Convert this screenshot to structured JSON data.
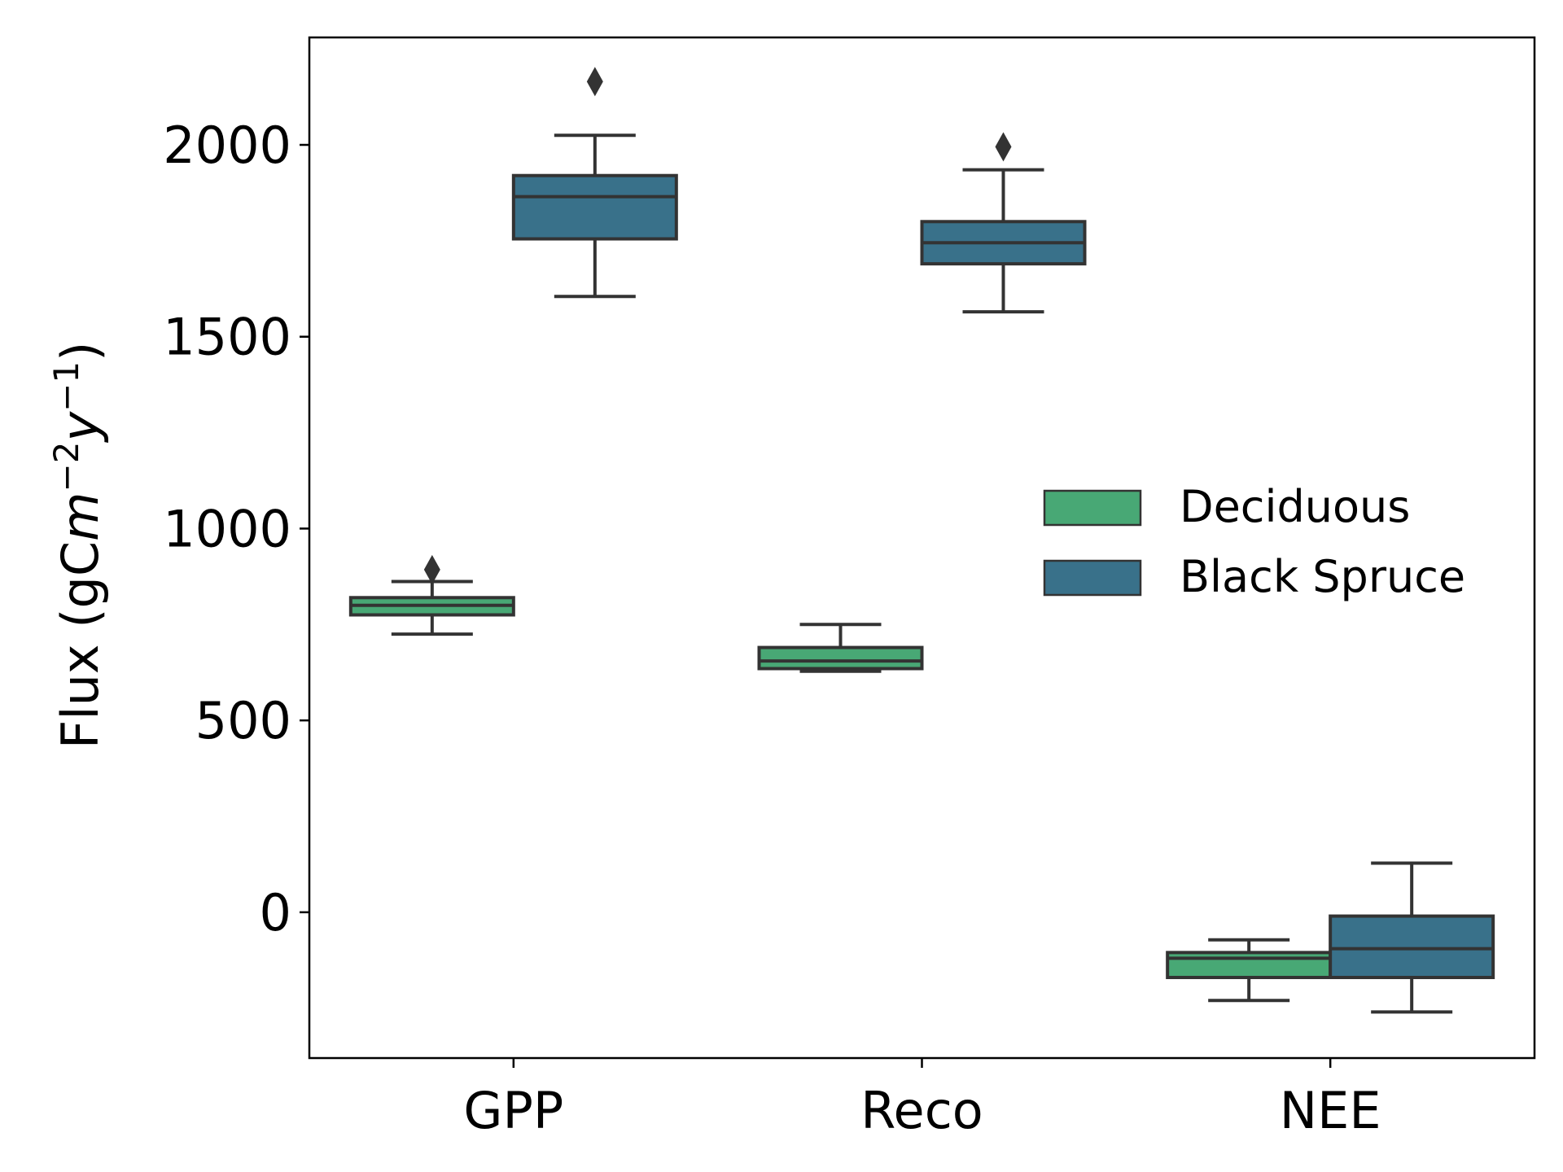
{
  "chart_data": {
    "type": "box",
    "title": "",
    "xlabel": "",
    "ylabel": {
      "text": "Flux (gCm⁻²y⁻¹)",
      "parts": [
        "Flux (gC",
        "m",
        "−2",
        "y",
        "−1",
        ")"
      ]
    },
    "ylim": [
      -380,
      2280
    ],
    "yticks": [
      0,
      500,
      1000,
      1500,
      2000
    ],
    "categories": [
      "GPP",
      "Reco",
      "NEE"
    ],
    "grid": false,
    "legend_position": "center-right",
    "series": [
      {
        "name": "Deciduous",
        "color": "#48a875",
        "boxes": [
          {
            "category": "GPP",
            "whisker_low": 725,
            "q1": 775,
            "median": 800,
            "q3": 820,
            "whisker_high": 862,
            "outliers": [
              893
            ]
          },
          {
            "category": "Reco",
            "whisker_low": 628,
            "q1": 635,
            "median": 655,
            "q3": 690,
            "whisker_high": 750,
            "outliers": []
          },
          {
            "category": "NEE",
            "whisker_low": -230,
            "q1": -170,
            "median": -120,
            "q3": -105,
            "whisker_high": -72,
            "outliers": []
          }
        ]
      },
      {
        "name": "Black Spruce",
        "color": "#39718a",
        "boxes": [
          {
            "category": "GPP",
            "whisker_low": 1605,
            "q1": 1755,
            "median": 1865,
            "q3": 1920,
            "whisker_high": 2025,
            "outliers": [
              2165
            ]
          },
          {
            "category": "Reco",
            "whisker_low": 1565,
            "q1": 1690,
            "median": 1745,
            "q3": 1800,
            "whisker_high": 1935,
            "outliers": [
              1995
            ]
          },
          {
            "category": "NEE",
            "whisker_low": -260,
            "q1": -170,
            "median": -95,
            "q3": -10,
            "whisker_high": 128,
            "outliers": []
          }
        ]
      }
    ]
  }
}
